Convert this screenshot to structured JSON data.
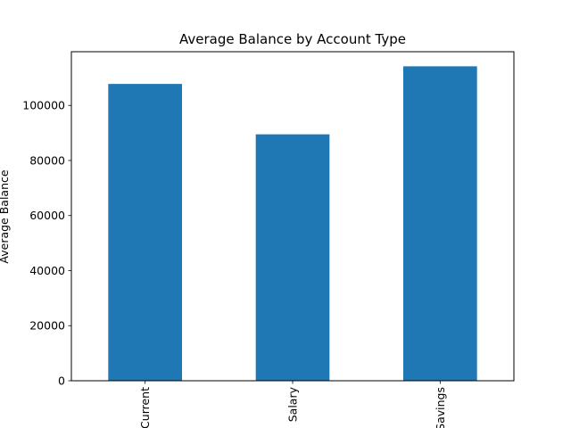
{
  "chart_data": {
    "type": "bar",
    "title": "Average Balance by Account Type",
    "xlabel": "",
    "ylabel": "Average Balance",
    "categories": [
      "Current",
      "Salary",
      "Savings"
    ],
    "values": [
      107800,
      89500,
      114200
    ],
    "ylim": [
      0,
      119500
    ],
    "yticks": [
      0,
      20000,
      40000,
      60000,
      80000,
      100000
    ],
    "ytick_labels": [
      "0",
      "20000",
      "40000",
      "60000",
      "80000",
      "100000"
    ],
    "bar_color": "#1f77b4",
    "grid": false,
    "legend": "none"
  }
}
